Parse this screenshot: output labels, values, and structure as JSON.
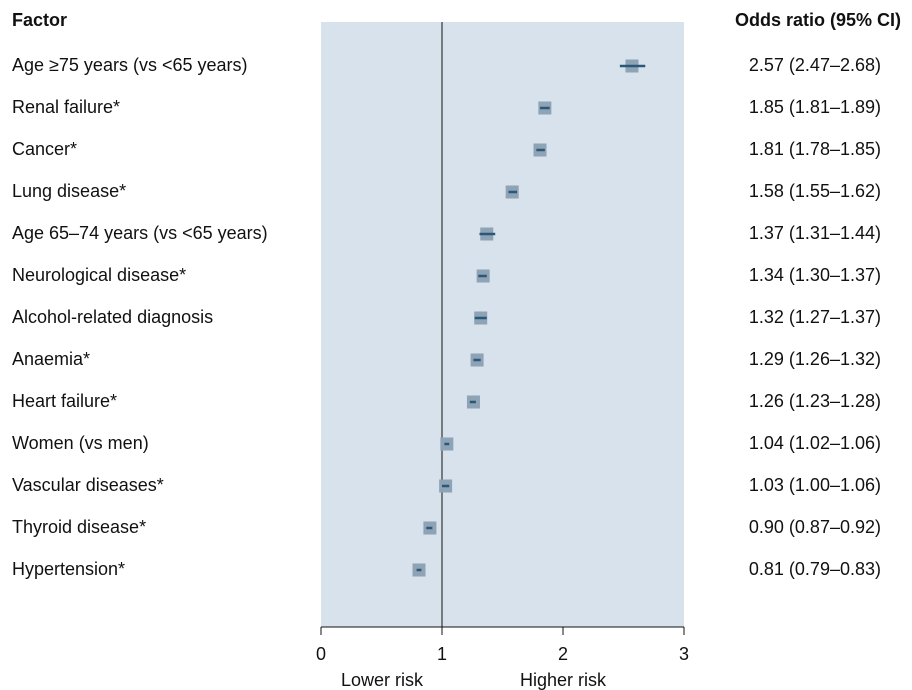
{
  "chart_data": {
    "type": "forest",
    "category_header": "Factor",
    "value_header": "Odds ratio (95% CI)",
    "categories": [
      "Age ≥75 years (vs <65 years)",
      "Renal failure*",
      "Cancer*",
      "Lung disease*",
      "Age 65–74 years (vs <65 years)",
      "Neurological disease*",
      "Alcohol-related diagnosis",
      "Anaemia*",
      "Heart failure*",
      "Women (vs men)",
      "Vascular diseases*",
      "Thyroid disease*",
      "Hypertension*"
    ],
    "values": [
      2.57,
      1.85,
      1.81,
      1.58,
      1.37,
      1.34,
      1.32,
      1.29,
      1.26,
      1.04,
      1.03,
      0.9,
      0.81
    ],
    "ci_lower": [
      2.47,
      1.81,
      1.78,
      1.55,
      1.31,
      1.3,
      1.27,
      1.26,
      1.23,
      1.02,
      1.0,
      0.87,
      0.79
    ],
    "ci_upper": [
      2.68,
      1.89,
      1.85,
      1.62,
      1.44,
      1.37,
      1.37,
      1.32,
      1.28,
      1.06,
      1.06,
      0.92,
      0.83
    ],
    "value_labels": [
      "2.57 (2.47–2.68)",
      "1.85 (1.81–1.89)",
      "1.81 (1.78–1.85)",
      "1.58 (1.55–1.62)",
      "1.37 (1.31–1.44)",
      "1.34 (1.30–1.37)",
      "1.32 (1.27–1.37)",
      "1.29 (1.26–1.32)",
      "1.26 (1.23–1.28)",
      "1.04 (1.02–1.06)",
      "1.03 (1.00–1.06)",
      "0.90 (0.87–0.92)",
      "0.81 (0.79–0.83)"
    ],
    "xlim": [
      0,
      3
    ],
    "xticks": [
      0,
      1,
      2,
      3
    ],
    "reference_line": 1,
    "annotations": [
      "Lower risk",
      "Higher risk"
    ],
    "marker_color": "#8ea3b6",
    "ci_color": "#2b5877",
    "plot_background": "#d8e2ec"
  }
}
